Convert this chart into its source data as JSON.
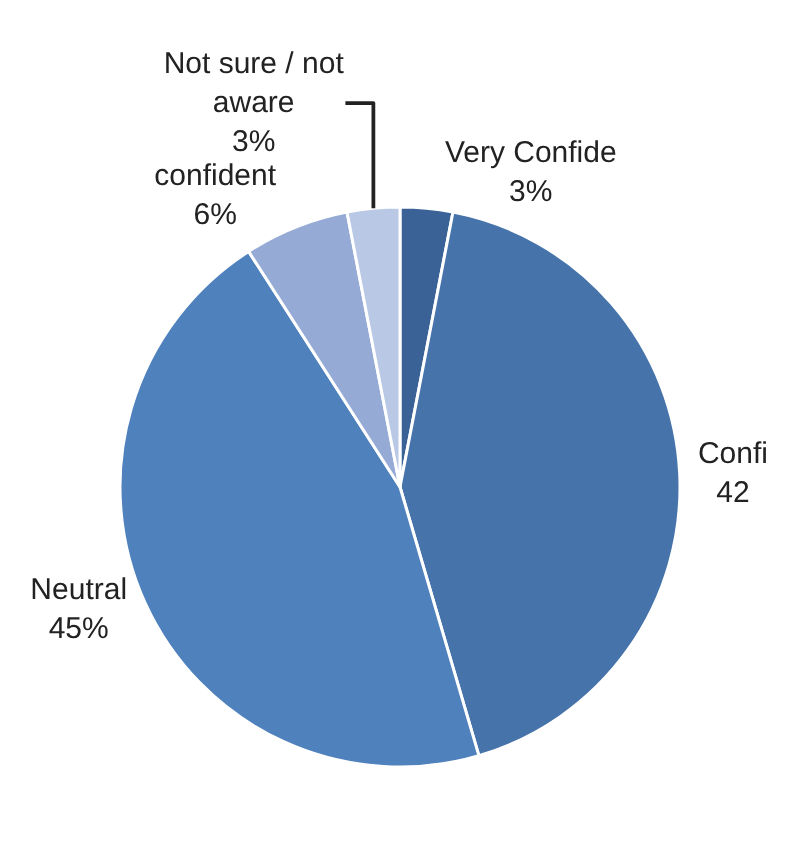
{
  "chart_data": {
    "type": "pie",
    "categories": [
      "Very Confide",
      "Confi",
      "Neutral",
      "confident",
      "Not sure / not aware"
    ],
    "values": [
      3,
      42,
      45,
      6,
      3
    ],
    "value_labels": [
      "3%",
      "42",
      "45%",
      "6%",
      "3%"
    ],
    "colors": [
      "#3b6296",
      "#4673aa",
      "#4f81bd",
      "#95abd6",
      "#b9c8e4"
    ],
    "legend": false
  }
}
